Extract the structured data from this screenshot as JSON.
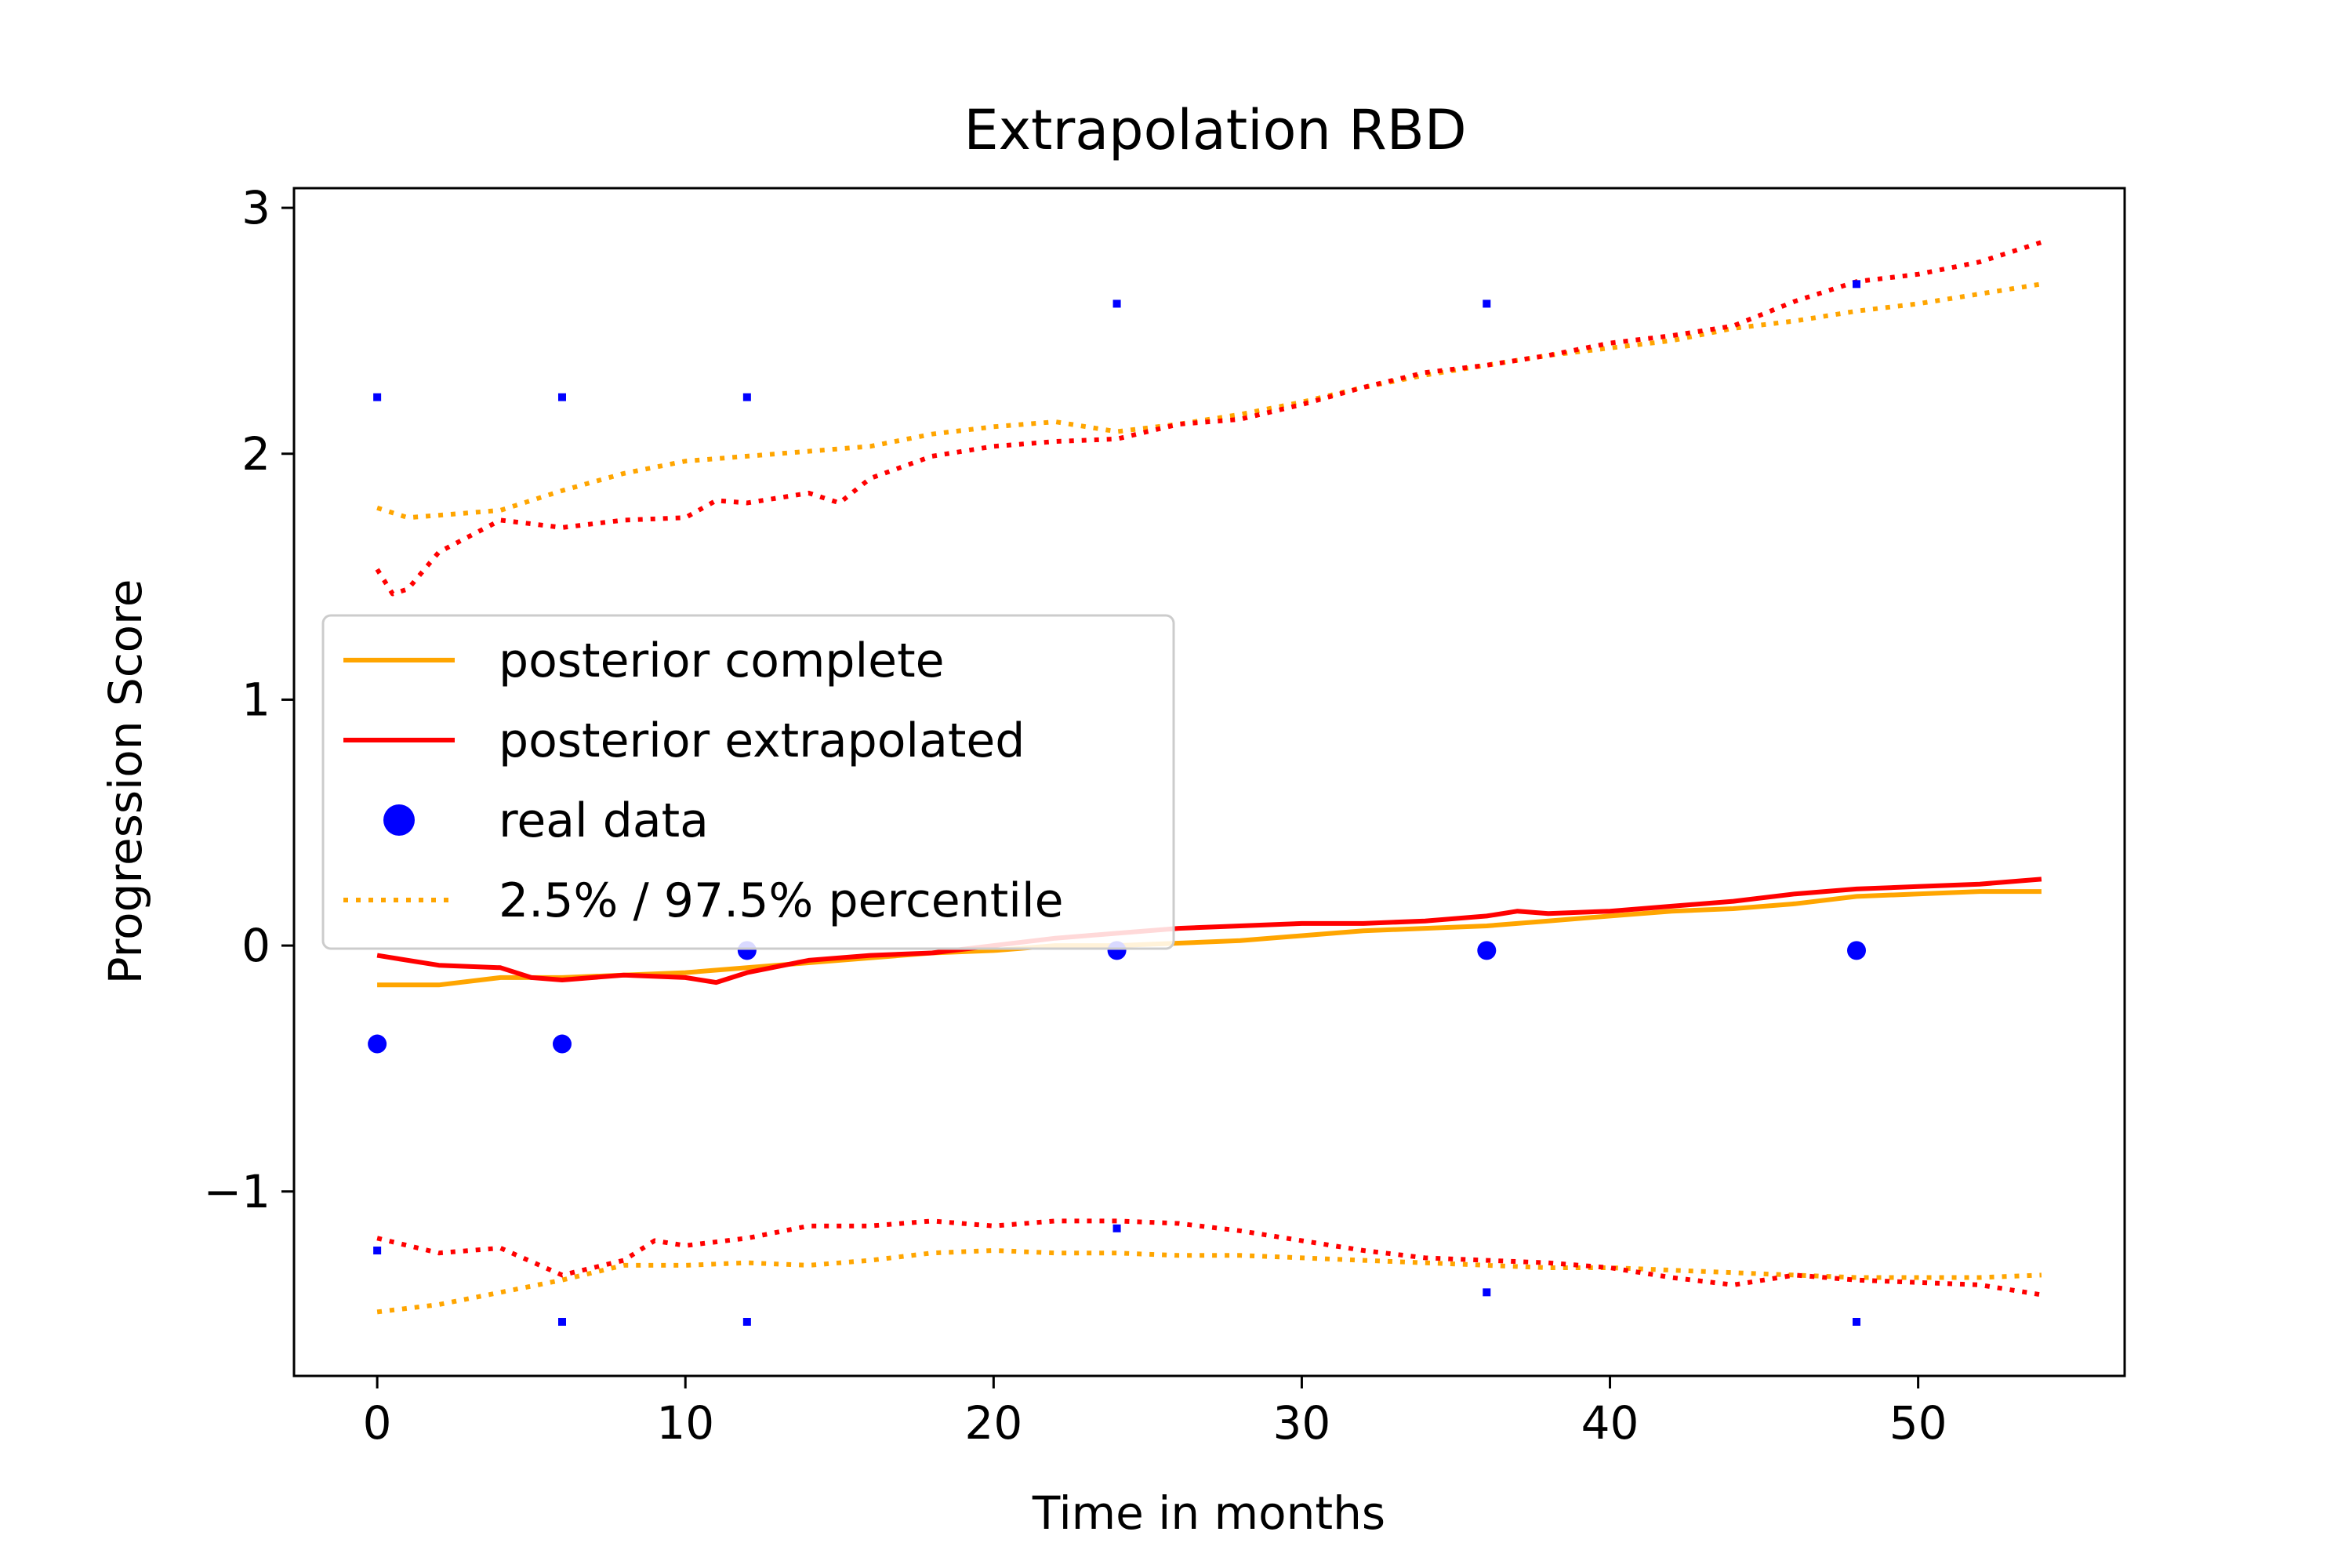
{
  "chart_data": {
    "type": "line",
    "title": "Extrapolation RBD",
    "xlabel": "Time in months",
    "ylabel": "Progression Score",
    "xlim": [
      -2.7,
      56.7
    ],
    "ylim": [
      -1.75,
      3.08
    ],
    "xticks": [
      0,
      10,
      20,
      30,
      40,
      50
    ],
    "yticks": [
      -1,
      0,
      1,
      2,
      3
    ],
    "xtick_labels": [
      "0",
      "10",
      "20",
      "30",
      "40",
      "50"
    ],
    "ytick_labels": [
      "−1",
      "0",
      "1",
      "2",
      "3"
    ],
    "legend_position": "center-left",
    "legend": [
      {
        "label": "posterior complete",
        "style": "solid",
        "color": "#ffa500"
      },
      {
        "label": "posterior extrapolated",
        "style": "solid",
        "color": "#ff0000"
      },
      {
        "label": "real data",
        "style": "marker",
        "color": "#0000ff"
      },
      {
        "label": "2.5% / 97.5% percentile",
        "style": "dotted",
        "color": "#ffa500"
      }
    ],
    "series": [
      {
        "name": "posterior complete",
        "style": "solid",
        "color": "#ffa500",
        "x": [
          0,
          2,
          4,
          6,
          8,
          10,
          12,
          14,
          16,
          18,
          20,
          22,
          24,
          26,
          28,
          30,
          32,
          34,
          36,
          38,
          40,
          42,
          44,
          46,
          48,
          50,
          52,
          54
        ],
        "y": [
          -0.16,
          -0.16,
          -0.13,
          -0.13,
          -0.12,
          -0.11,
          -0.09,
          -0.07,
          -0.05,
          -0.03,
          -0.02,
          0.0,
          0.0,
          0.01,
          0.02,
          0.04,
          0.06,
          0.07,
          0.08,
          0.1,
          0.12,
          0.14,
          0.15,
          0.17,
          0.2,
          0.21,
          0.22,
          0.22
        ]
      },
      {
        "name": "posterior extrapolated",
        "style": "solid",
        "color": "#ff0000",
        "x": [
          0,
          2,
          4,
          5,
          6,
          8,
          10,
          11,
          12,
          14,
          16,
          18,
          20,
          22,
          24,
          26,
          28,
          30,
          32,
          34,
          36,
          37,
          38,
          40,
          42,
          44,
          46,
          48,
          50,
          52,
          54
        ],
        "y": [
          -0.04,
          -0.08,
          -0.09,
          -0.13,
          -0.14,
          -0.12,
          -0.13,
          -0.15,
          -0.11,
          -0.06,
          -0.04,
          -0.03,
          0.0,
          0.03,
          0.05,
          0.07,
          0.08,
          0.09,
          0.09,
          0.1,
          0.12,
          0.14,
          0.13,
          0.14,
          0.16,
          0.18,
          0.21,
          0.23,
          0.24,
          0.25,
          0.27
        ]
      },
      {
        "name": "2.5% percentile",
        "style": "dotted",
        "color": "#ffa500",
        "x": [
          0,
          2,
          4,
          6,
          8,
          10,
          12,
          14,
          16,
          18,
          20,
          22,
          24,
          26,
          28,
          30,
          32,
          34,
          36,
          38,
          40,
          42,
          44,
          46,
          48,
          50,
          52,
          54
        ],
        "y": [
          -1.49,
          -1.46,
          -1.41,
          -1.36,
          -1.3,
          -1.3,
          -1.29,
          -1.3,
          -1.28,
          -1.25,
          -1.24,
          -1.25,
          -1.25,
          -1.26,
          -1.26,
          -1.27,
          -1.28,
          -1.29,
          -1.3,
          -1.31,
          -1.31,
          -1.32,
          -1.33,
          -1.34,
          -1.35,
          -1.35,
          -1.35,
          -1.34
        ]
      },
      {
        "name": "97.5% percentile",
        "style": "dotted",
        "color": "#ffa500",
        "x": [
          0,
          1,
          2,
          4,
          6,
          8,
          10,
          12,
          14,
          16,
          18,
          20,
          22,
          24,
          26,
          28,
          30,
          32,
          34,
          36,
          38,
          40,
          42,
          44,
          46,
          48,
          50,
          52,
          54
        ],
        "y": [
          1.78,
          1.74,
          1.75,
          1.77,
          1.85,
          1.92,
          1.97,
          1.99,
          2.01,
          2.03,
          2.08,
          2.11,
          2.13,
          2.09,
          2.12,
          2.16,
          2.21,
          2.27,
          2.32,
          2.36,
          2.4,
          2.43,
          2.46,
          2.51,
          2.54,
          2.58,
          2.61,
          2.65,
          2.69
        ]
      },
      {
        "name": "2.5% percentile extrapolated",
        "style": "dotted",
        "color": "#ff0000",
        "x": [
          0,
          2,
          4,
          6,
          8,
          9,
          10,
          12,
          14,
          16,
          18,
          20,
          22,
          24,
          26,
          28,
          30,
          32,
          34,
          36,
          38,
          40,
          42,
          44,
          46,
          48,
          50,
          52,
          54
        ],
        "y": [
          -1.19,
          -1.25,
          -1.23,
          -1.34,
          -1.28,
          -1.2,
          -1.22,
          -1.19,
          -1.14,
          -1.14,
          -1.12,
          -1.14,
          -1.12,
          -1.12,
          -1.13,
          -1.16,
          -1.2,
          -1.24,
          -1.27,
          -1.28,
          -1.29,
          -1.31,
          -1.35,
          -1.38,
          -1.34,
          -1.36,
          -1.37,
          -1.38,
          -1.42
        ]
      },
      {
        "name": "97.5% percentile extrapolated",
        "style": "dotted",
        "color": "#ff0000",
        "x": [
          0,
          0.5,
          1,
          2,
          4,
          6,
          8,
          10,
          11,
          12,
          14,
          15,
          16,
          18,
          20,
          22,
          24,
          26,
          28,
          30,
          32,
          34,
          36,
          38,
          40,
          42,
          44,
          46,
          48,
          50,
          52,
          54
        ],
        "y": [
          1.53,
          1.43,
          1.45,
          1.6,
          1.73,
          1.7,
          1.73,
          1.74,
          1.81,
          1.8,
          1.84,
          1.8,
          1.9,
          1.99,
          2.03,
          2.05,
          2.06,
          2.12,
          2.14,
          2.2,
          2.27,
          2.33,
          2.36,
          2.4,
          2.45,
          2.48,
          2.52,
          2.62,
          2.7,
          2.73,
          2.78,
          2.86
        ]
      },
      {
        "name": "real data",
        "style": "scatter",
        "color": "#0000ff",
        "x": [
          0,
          6,
          12,
          24,
          36,
          48
        ],
        "y": [
          -0.4,
          -0.4,
          -0.02,
          -0.02,
          -0.02,
          -0.02
        ]
      },
      {
        "name": "real data upper",
        "style": "scatter-small",
        "color": "#0000ff",
        "x": [
          0,
          6,
          12,
          24,
          36,
          48
        ],
        "y": [
          2.23,
          2.23,
          2.23,
          2.61,
          2.61,
          2.69
        ]
      },
      {
        "name": "real data lower",
        "style": "scatter-small",
        "color": "#0000ff",
        "x": [
          0,
          6,
          12,
          24,
          36,
          48
        ],
        "y": [
          -1.24,
          -1.53,
          -1.53,
          -1.15,
          -1.41,
          -1.53
        ]
      }
    ]
  }
}
